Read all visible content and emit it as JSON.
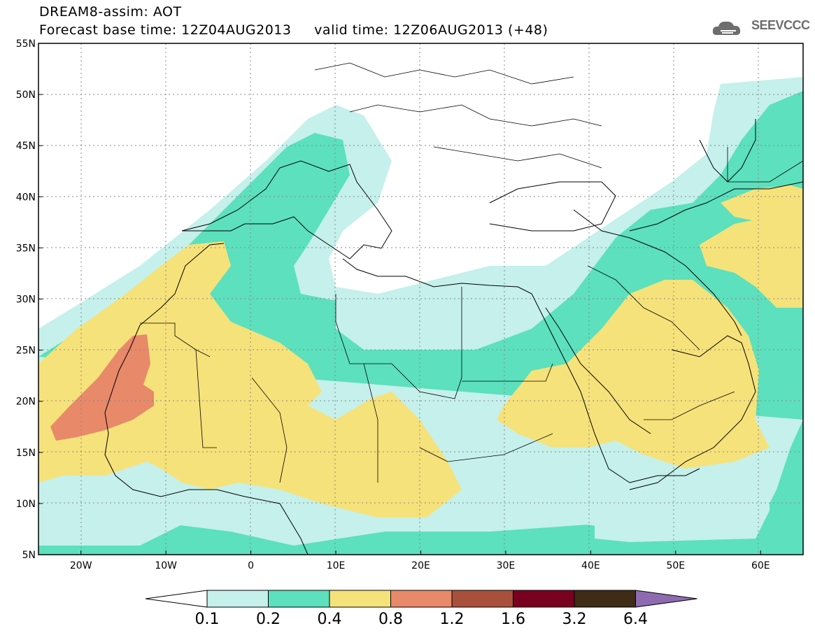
{
  "header": {
    "line1": "DREAM8-assim: AOT",
    "line2": "Forecast base time: 12Z04AUG2013     valid time: 12Z06AUG2013 (+48)",
    "logo_text": "SEEVCCC"
  },
  "map": {
    "lon_range": [
      -25,
      65
    ],
    "lat_range": [
      5,
      55
    ],
    "lat_ticks": [
      "55N",
      "50N",
      "45N",
      "40N",
      "35N",
      "30N",
      "25N",
      "20N",
      "15N",
      "10N",
      "5N"
    ],
    "lon_ticks": [
      "20W",
      "10W",
      "0",
      "10E",
      "20E",
      "30E",
      "40E",
      "50E",
      "60E"
    ],
    "grid": "dotted"
  },
  "legend": {
    "colors": [
      "#c5f0ec",
      "#5ce0bd",
      "#f6e27a",
      "#e8896a",
      "#a9503d",
      "#7a0020",
      "#3e2c17"
    ],
    "under_color": "#ffffff",
    "over_color": "#8e6bb0",
    "labels": [
      "0.1",
      "0.2",
      "0.4",
      "0.8",
      "1.2",
      "1.6",
      "3.2",
      "6.4"
    ]
  },
  "colors": {
    "ocean": "#ffffff",
    "border": "#000000"
  }
}
